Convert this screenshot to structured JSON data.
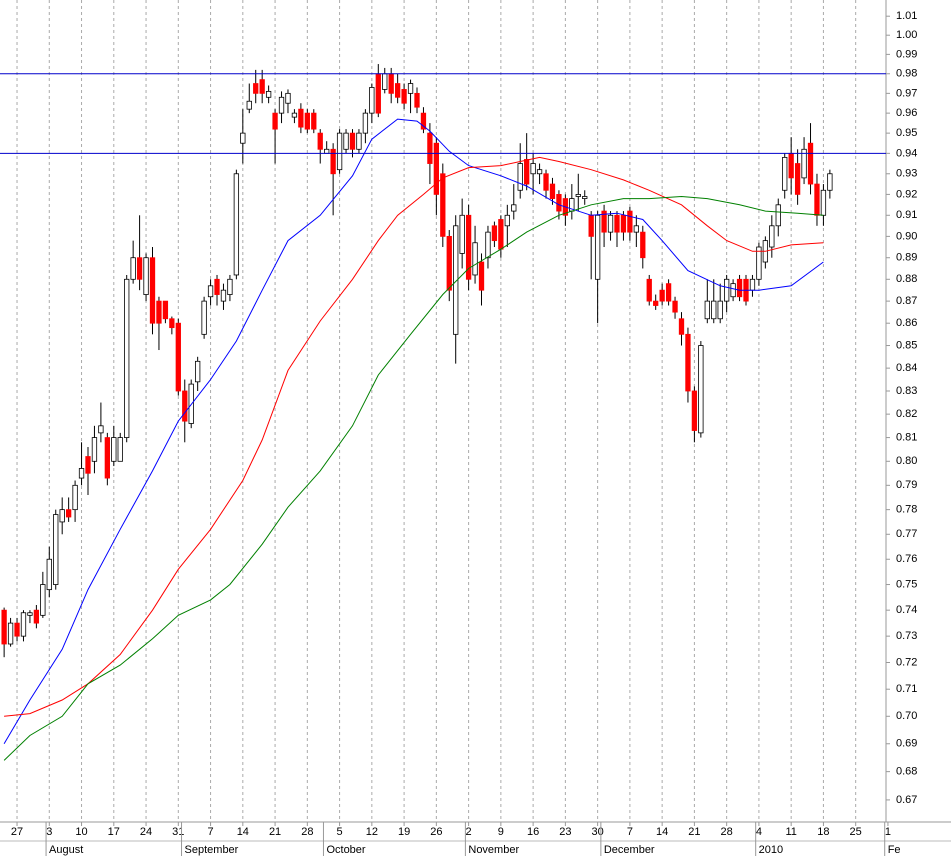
{
  "chart_data": {
    "type": "candlestick",
    "x": [
      0,
      1,
      2,
      3,
      4,
      5,
      6,
      7,
      8,
      9,
      10,
      11,
      12,
      13,
      14,
      15,
      16,
      17,
      18,
      19,
      20,
      21,
      22,
      23,
      24,
      25,
      26,
      27,
      28,
      29,
      30,
      31,
      32,
      33,
      34,
      35,
      36,
      37,
      38,
      39,
      40,
      41,
      42,
      43,
      44,
      45,
      46,
      47,
      48,
      49,
      50,
      51,
      52,
      53,
      54,
      55,
      56,
      57,
      58,
      59,
      60,
      61,
      62,
      63,
      64,
      65,
      66,
      67,
      68,
      69,
      70,
      71,
      72,
      73,
      74,
      75,
      76,
      77,
      78,
      79,
      80,
      81,
      82,
      83,
      84,
      85,
      86,
      87,
      88,
      89,
      90,
      91,
      92,
      93,
      94,
      95,
      96,
      97,
      98,
      99,
      100,
      101,
      102,
      103,
      104,
      105,
      106,
      107,
      108,
      109,
      110,
      111,
      112,
      113,
      114,
      115,
      116,
      117,
      118,
      119,
      120,
      121,
      122,
      123,
      124,
      125,
      126,
      127,
      128
    ],
    "open": [
      0.74,
      0.727,
      0.735,
      0.73,
      0.738,
      0.74,
      0.738,
      0.748,
      0.75,
      0.775,
      0.78,
      0.78,
      0.793,
      0.802,
      0.8,
      0.812,
      0.81,
      0.8,
      0.8,
      0.81,
      0.88,
      0.89,
      0.873,
      0.89,
      0.87,
      0.87,
      0.862,
      0.86,
      0.83,
      0.816,
      0.834,
      0.855,
      0.872,
      0.88,
      0.87,
      0.873,
      0.882,
      0.945,
      0.962,
      0.975,
      0.977,
      0.968,
      0.96,
      0.96,
      0.965,
      0.958,
      0.962,
      0.96,
      0.96,
      0.95,
      0.94,
      0.942,
      0.932,
      0.942,
      0.95,
      0.942,
      0.95,
      0.96,
      0.98,
      0.972,
      0.98,
      0.975,
      0.972,
      0.97,
      0.97,
      0.96,
      0.95,
      0.945,
      0.93,
      0.9,
      0.855,
      0.892,
      0.91,
      0.882,
      0.888,
      0.89,
      0.905,
      0.908,
      0.905,
      0.912,
      0.922,
      0.937,
      0.93,
      0.93,
      0.93,
      0.925,
      0.92,
      0.918,
      0.912,
      0.919,
      0.918,
      0.91,
      0.88,
      0.912,
      0.902,
      0.91,
      0.91,
      0.912,
      0.902,
      0.902,
      0.88,
      0.87,
      0.875,
      0.878,
      0.87,
      0.862,
      0.855,
      0.83,
      0.812,
      0.862,
      0.862,
      0.862,
      0.87,
      0.872,
      0.88,
      0.88,
      0.875,
      0.88,
      0.888,
      0.895,
      0.905,
      0.922,
      0.94,
      0.935,
      0.928,
      0.945,
      0.925,
      0.91,
      0.922
    ],
    "high": [
      0.741,
      0.737,
      0.737,
      0.74,
      0.74,
      0.742,
      0.755,
      0.765,
      0.78,
      0.785,
      0.785,
      0.792,
      0.808,
      0.806,
      0.815,
      0.825,
      0.812,
      0.815,
      0.812,
      0.882,
      0.898,
      0.91,
      0.892,
      0.895,
      0.872,
      0.87,
      0.863,
      0.862,
      0.835,
      0.835,
      0.845,
      0.872,
      0.88,
      0.882,
      0.878,
      0.882,
      0.932,
      0.962,
      0.975,
      0.982,
      0.982,
      0.974,
      0.962,
      0.971,
      0.972,
      0.962,
      0.965,
      0.962,
      0.962,
      0.952,
      0.946,
      0.945,
      0.952,
      0.952,
      0.952,
      0.952,
      0.962,
      0.975,
      0.985,
      0.983,
      0.983,
      0.98,
      0.975,
      0.977,
      0.973,
      0.963,
      0.955,
      0.948,
      0.935,
      0.903,
      0.91,
      0.918,
      0.915,
      0.905,
      0.892,
      0.905,
      0.907,
      0.91,
      0.915,
      0.925,
      0.945,
      0.95,
      0.94,
      0.935,
      0.932,
      0.928,
      0.922,
      0.92,
      0.925,
      0.93,
      0.922,
      0.912,
      0.912,
      0.915,
      0.912,
      0.912,
      0.912,
      0.914,
      0.91,
      0.905,
      0.882,
      0.873,
      0.878,
      0.88,
      0.872,
      0.865,
      0.858,
      0.832,
      0.852,
      0.88,
      0.88,
      0.878,
      0.882,
      0.88,
      0.882,
      0.882,
      0.882,
      0.897,
      0.9,
      0.91,
      0.918,
      0.94,
      0.948,
      0.942,
      0.948,
      0.955,
      0.93,
      0.925,
      0.932
    ],
    "low": [
      0.722,
      0.726,
      0.728,
      0.728,
      0.735,
      0.733,
      0.737,
      0.745,
      0.748,
      0.77,
      0.775,
      0.775,
      0.79,
      0.786,
      0.795,
      0.808,
      0.79,
      0.798,
      0.8,
      0.808,
      0.878,
      0.875,
      0.87,
      0.855,
      0.848,
      0.86,
      0.855,
      0.828,
      0.808,
      0.814,
      0.83,
      0.853,
      0.868,
      0.868,
      0.866,
      0.87,
      0.88,
      0.935,
      0.96,
      0.965,
      0.965,
      0.965,
      0.935,
      0.955,
      0.96,
      0.955,
      0.95,
      0.95,
      0.95,
      0.935,
      0.94,
      0.91,
      0.93,
      0.94,
      0.938,
      0.94,
      0.945,
      0.955,
      0.958,
      0.97,
      0.965,
      0.965,
      0.962,
      0.96,
      0.96,
      0.95,
      0.925,
      0.91,
      0.895,
      0.87,
      0.842,
      0.885,
      0.875,
      0.878,
      0.868,
      0.885,
      0.895,
      0.89,
      0.895,
      0.908,
      0.918,
      0.922,
      0.92,
      0.925,
      0.918,
      0.915,
      0.908,
      0.905,
      0.908,
      0.912,
      0.915,
      0.88,
      0.86,
      0.895,
      0.898,
      0.895,
      0.898,
      0.898,
      0.895,
      0.885,
      0.868,
      0.866,
      0.868,
      0.868,
      0.862,
      0.85,
      0.825,
      0.808,
      0.81,
      0.86,
      0.86,
      0.86,
      0.865,
      0.87,
      0.87,
      0.868,
      0.872,
      0.877,
      0.885,
      0.89,
      0.9,
      0.918,
      0.92,
      0.915,
      0.925,
      0.92,
      0.905,
      0.905,
      0.918
    ],
    "close": [
      0.727,
      0.735,
      0.73,
      0.739,
      0.739,
      0.735,
      0.75,
      0.76,
      0.778,
      0.78,
      0.777,
      0.79,
      0.797,
      0.795,
      0.81,
      0.815,
      0.793,
      0.81,
      0.81,
      0.88,
      0.89,
      0.88,
      0.89,
      0.86,
      0.86,
      0.862,
      0.858,
      0.83,
      0.817,
      0.833,
      0.843,
      0.87,
      0.877,
      0.873,
      0.875,
      0.88,
      0.93,
      0.95,
      0.966,
      0.97,
      0.97,
      0.971,
      0.952,
      0.968,
      0.97,
      0.96,
      0.953,
      0.952,
      0.952,
      0.942,
      0.942,
      0.93,
      0.95,
      0.95,
      0.942,
      0.95,
      0.96,
      0.973,
      0.96,
      0.98,
      0.97,
      0.968,
      0.965,
      0.975,
      0.963,
      0.952,
      0.935,
      0.92,
      0.9,
      0.875,
      0.905,
      0.91,
      0.88,
      0.897,
      0.875,
      0.902,
      0.898,
      0.894,
      0.91,
      0.915,
      0.935,
      0.925,
      0.935,
      0.932,
      0.922,
      0.918,
      0.912,
      0.91,
      0.918,
      0.92,
      0.919,
      0.9,
      0.91,
      0.902,
      0.91,
      0.902,
      0.902,
      0.902,
      0.905,
      0.89,
      0.87,
      0.868,
      0.87,
      0.87,
      0.865,
      0.855,
      0.83,
      0.813,
      0.85,
      0.87,
      0.87,
      0.87,
      0.88,
      0.878,
      0.872,
      0.87,
      0.88,
      0.895,
      0.898,
      0.905,
      0.915,
      0.938,
      0.928,
      0.92,
      0.942,
      0.925,
      0.91,
      0.922,
      0.93
    ],
    "up_color": "#ffffff",
    "down_color": "#ff0000",
    "lines": [
      {
        "color": "#0000ff",
        "x": [
          0,
          4,
          9,
          13,
          18,
          23,
          27,
          32,
          36,
          40,
          44,
          49,
          54,
          57,
          61,
          64,
          66,
          69,
          72,
          77,
          81,
          86,
          91,
          95,
          99,
          102,
          106,
          111,
          114,
          117,
          122,
          127
        ],
        "values": [
          0.69,
          0.706,
          0.725,
          0.748,
          0.772,
          0.796,
          0.817,
          0.835,
          0.852,
          0.875,
          0.898,
          0.91,
          0.929,
          0.947,
          0.957,
          0.956,
          0.951,
          0.941,
          0.934,
          0.929,
          0.924,
          0.915,
          0.91,
          0.911,
          0.908,
          0.898,
          0.884,
          0.877,
          0.875,
          0.875,
          0.877,
          0.888
        ]
      },
      {
        "color": "#ff0000",
        "x": [
          0,
          4,
          9,
          13,
          18,
          23,
          27,
          32,
          37,
          40,
          44,
          49,
          54,
          58,
          61,
          65,
          68,
          72,
          77,
          80,
          83,
          86,
          91,
          96,
          100,
          105,
          109,
          112,
          116,
          118,
          122,
          127
        ],
        "values": [
          0.7,
          0.701,
          0.706,
          0.712,
          0.723,
          0.74,
          0.756,
          0.772,
          0.792,
          0.809,
          0.839,
          0.861,
          0.88,
          0.898,
          0.91,
          0.92,
          0.928,
          0.933,
          0.934,
          0.936,
          0.938,
          0.936,
          0.932,
          0.927,
          0.922,
          0.915,
          0.905,
          0.898,
          0.893,
          0.893,
          0.896,
          0.897
        ]
      },
      {
        "color": "#008000",
        "x": [
          0,
          4,
          9,
          13,
          18,
          23,
          27,
          32,
          35,
          40,
          44,
          49,
          54,
          58,
          63,
          68,
          72,
          77,
          81,
          86,
          91,
          96,
          100,
          105,
          109,
          114,
          118,
          123,
          127
        ],
        "values": [
          0.684,
          0.693,
          0.7,
          0.712,
          0.719,
          0.729,
          0.738,
          0.744,
          0.75,
          0.766,
          0.781,
          0.796,
          0.815,
          0.837,
          0.855,
          0.873,
          0.885,
          0.894,
          0.902,
          0.91,
          0.915,
          0.918,
          0.918,
          0.919,
          0.918,
          0.915,
          0.912,
          0.911,
          0.91
        ]
      }
    ],
    "hlines": [
      0.98,
      0.94
    ],
    "hline_color": "#0000cc",
    "xlim": [
      -0.64,
      136.7
    ],
    "xticks": [
      {
        "value": 2,
        "label": "27"
      },
      {
        "value": 7,
        "label": "3"
      },
      {
        "value": 12,
        "label": "10"
      },
      {
        "value": 17,
        "label": "17"
      },
      {
        "value": 22,
        "label": "24"
      },
      {
        "value": 27,
        "label": "31"
      },
      {
        "value": 32,
        "label": "7"
      },
      {
        "value": 37,
        "label": "14"
      },
      {
        "value": 42,
        "label": "21"
      },
      {
        "value": 47,
        "label": "28"
      },
      {
        "value": 52,
        "label": "5"
      },
      {
        "value": 57,
        "label": "12"
      },
      {
        "value": 62,
        "label": "19"
      },
      {
        "value": 67,
        "label": "26"
      },
      {
        "value": 72,
        "label": "2"
      },
      {
        "value": 77,
        "label": "9"
      },
      {
        "value": 82,
        "label": "16"
      },
      {
        "value": 87,
        "label": "23"
      },
      {
        "value": 92,
        "label": "30"
      },
      {
        "value": 97,
        "label": "7"
      },
      {
        "value": 102,
        "label": "14"
      },
      {
        "value": 107,
        "label": "21"
      },
      {
        "value": 112,
        "label": "28"
      },
      {
        "value": 117,
        "label": "4"
      },
      {
        "value": 122,
        "label": "11"
      },
      {
        "value": 127,
        "label": "18"
      },
      {
        "value": 132,
        "label": "25"
      },
      {
        "value": 137,
        "label": "1"
      }
    ],
    "months": [
      {
        "value": 6.5,
        "label": "August"
      },
      {
        "value": 27.5,
        "label": "September"
      },
      {
        "value": 49.5,
        "label": "October"
      },
      {
        "value": 71.5,
        "label": "November"
      },
      {
        "value": 92.5,
        "label": "December"
      },
      {
        "value": 116.5,
        "label": "2010"
      },
      {
        "value": 136.5,
        "label": "Fe"
      }
    ],
    "ylim": [
      0.6623,
      1.0186
    ],
    "ylog": true,
    "yticks": [
      0.67,
      0.68,
      0.69,
      {
        "value": 0.7,
        "label": "0.70"
      },
      0.71,
      0.72,
      0.73,
      0.74,
      0.75,
      0.76,
      0.77,
      0.78,
      0.79,
      {
        "value": 0.8,
        "label": "0.80"
      },
      0.81,
      0.82,
      0.83,
      0.84,
      0.85,
      0.86,
      0.87,
      0.88,
      0.89,
      {
        "value": 0.9,
        "label": "0.90"
      },
      0.91,
      0.92,
      0.93,
      0.94,
      0.95,
      0.96,
      0.97,
      0.98,
      0.99,
      {
        "value": 1,
        "label": "1.00"
      },
      1.01
    ],
    "grid": true
  }
}
